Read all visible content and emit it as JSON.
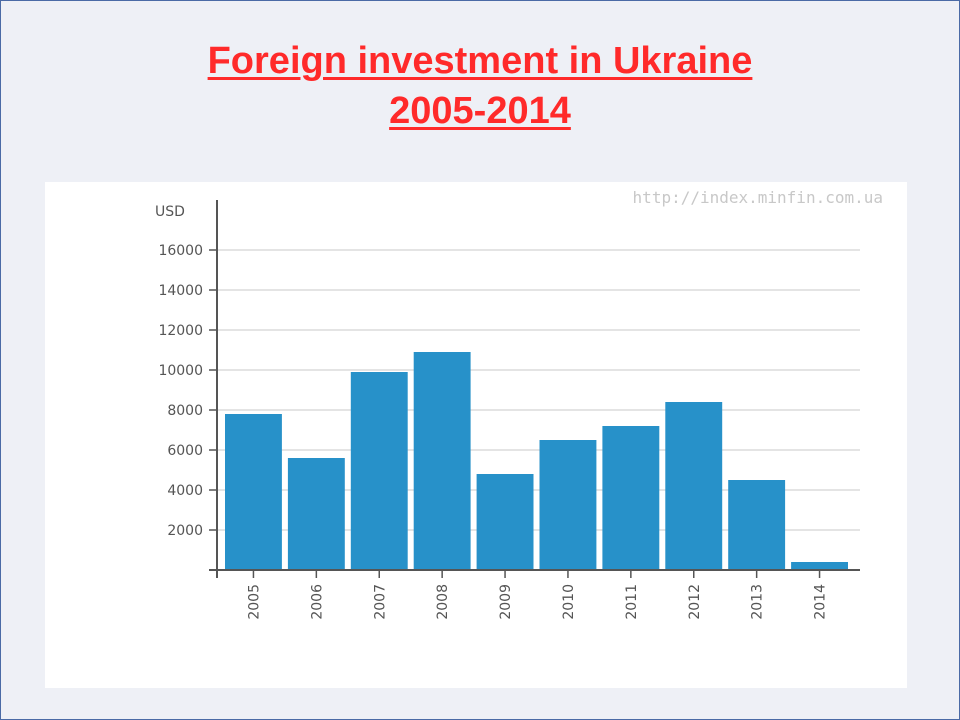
{
  "slide": {
    "title_line1": "Foreign investment in Ukraine",
    "title_line2": "2005-2014",
    "watermark": "http://index.minfin.com.ua"
  },
  "chart_data": {
    "type": "bar",
    "title": "",
    "ylabel": "USD",
    "xlabel": "",
    "categories": [
      "2005",
      "2006",
      "2007",
      "2008",
      "2009",
      "2010",
      "2011",
      "2012",
      "2013",
      "2014"
    ],
    "values": [
      7800,
      5600,
      9900,
      10900,
      4800,
      6500,
      7200,
      8400,
      4500,
      400
    ],
    "ylim": [
      0,
      17000
    ],
    "yticks": [
      "2000",
      "4000",
      "6000",
      "8000",
      "10000",
      "12000",
      "14000",
      "16000"
    ],
    "grid": true,
    "bar_color": "#2791c9"
  }
}
